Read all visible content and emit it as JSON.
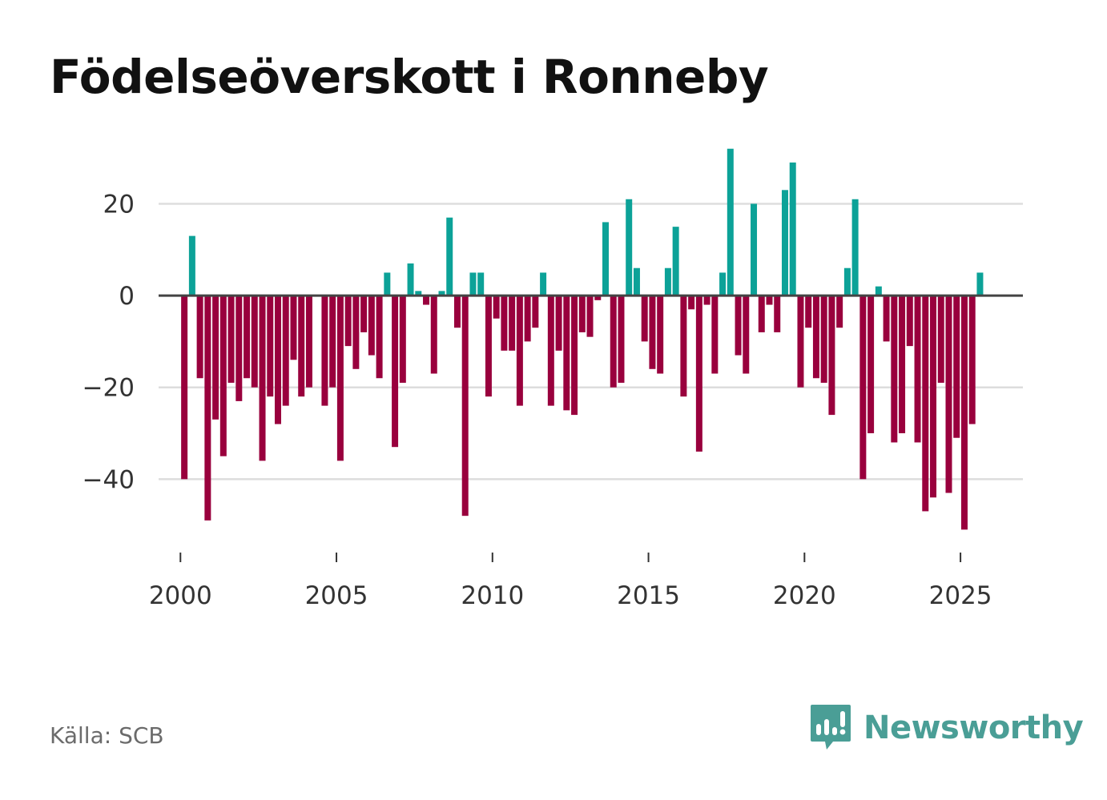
{
  "title": "Födelseöverskott i Ronneby",
  "source": "Källa: SCB",
  "brand": {
    "name": "Newsworthy",
    "icon": "newsworthy-logo-icon",
    "color": "#4a9e96"
  },
  "colors": {
    "positive": "#0ca298",
    "negative": "#99003d",
    "grid": "#dddddd",
    "zero": "#444444"
  },
  "chart_data": {
    "type": "bar",
    "title": "Födelseöverskott i Ronneby",
    "xlabel": "",
    "ylabel": "",
    "x_ticks": [
      2000,
      2005,
      2010,
      2015,
      2020,
      2025
    ],
    "x_tick_labels": [
      "2000",
      "2005",
      "2010",
      "2015",
      "2020",
      "2025"
    ],
    "y_ticks": [
      20,
      0,
      -20,
      -40
    ],
    "y_tick_labels": [
      "20",
      "0",
      "−20",
      "−40"
    ],
    "xlim": [
      1999.3,
      2027.0
    ],
    "ylim": [
      -56,
      33
    ],
    "grid": true,
    "series": [
      {
        "name": "Födelseöverskott",
        "frequency": "quarterly",
        "start": "2000 Q1",
        "values": [
          -40,
          13,
          -18,
          -49,
          -27,
          -35,
          -19,
          -23,
          -18,
          -20,
          -36,
          -22,
          -28,
          -24,
          -14,
          -22,
          -20,
          0,
          -24,
          -20,
          -36,
          -11,
          -16,
          -8,
          -13,
          -18,
          5,
          -33,
          -19,
          7,
          1,
          -2,
          -17,
          1,
          17,
          -7,
          -48,
          5,
          5,
          -22,
          -5,
          -12,
          -12,
          -24,
          -10,
          -7,
          5,
          -24,
          -12,
          -25,
          -26,
          -8,
          -9,
          -1,
          16,
          -20,
          -19,
          21,
          6,
          -10,
          -16,
          -17,
          6,
          15,
          -22,
          -3,
          -34,
          -2,
          -17,
          5,
          32,
          -13,
          -17,
          20,
          -8,
          -2,
          -8,
          23,
          29,
          -20,
          -7,
          -18,
          -19,
          -26,
          -7,
          6,
          21,
          -40,
          -30,
          2,
          -10,
          -32,
          -30,
          -11,
          -32,
          -47,
          -44,
          -19,
          -43,
          -31,
          -51,
          -28,
          5
        ]
      }
    ]
  }
}
